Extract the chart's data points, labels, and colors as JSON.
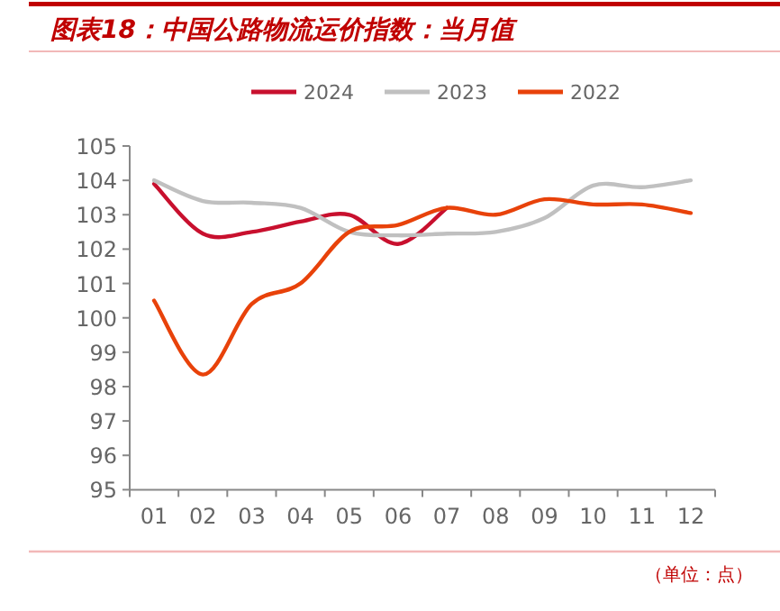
{
  "chart_data": {
    "type": "line",
    "title": "图表18：中国公路物流运价指数：当月值",
    "annotations": [
      "（单位：点）"
    ],
    "categories": [
      "01",
      "02",
      "03",
      "04",
      "05",
      "06",
      "07",
      "08",
      "09",
      "10",
      "11",
      "12"
    ],
    "series": [
      {
        "name": "2024",
        "color": "#c8102e",
        "values": [
          103.9,
          102.45,
          102.5,
          102.8,
          103.0,
          102.15,
          103.2,
          null,
          null,
          null,
          null,
          null
        ]
      },
      {
        "name": "2023",
        "color": "#c0c0c0",
        "values": [
          104.0,
          103.4,
          103.35,
          103.2,
          102.5,
          102.4,
          102.45,
          102.5,
          102.9,
          103.85,
          103.8,
          104.0
        ]
      },
      {
        "name": "2022",
        "color": "#e8420a",
        "values": [
          100.5,
          98.35,
          100.4,
          101.0,
          102.5,
          102.7,
          103.2,
          103.0,
          103.45,
          103.3,
          103.3,
          103.05
        ]
      }
    ],
    "ylim": [
      95,
      105
    ],
    "yticks": [
      95,
      96,
      97,
      98,
      99,
      100,
      101,
      102,
      103,
      104,
      105
    ],
    "grid": false,
    "legend": "top",
    "marker": "none",
    "line_style": "solid"
  }
}
